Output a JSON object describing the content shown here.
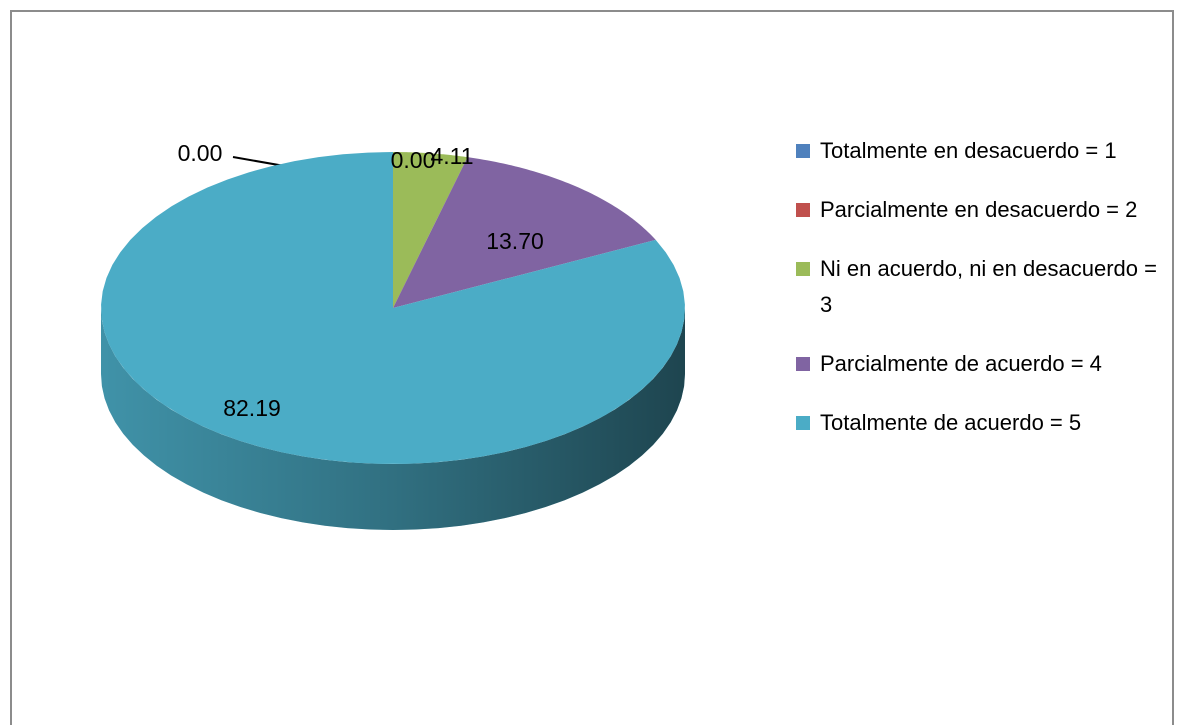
{
  "chart_data": {
    "type": "pie",
    "categories": [
      "Totalmente en desacuerdo = 1",
      "Parcialmente en desacuerdo = 2",
      "Ni en acuerdo, ni en desacuerdo = 3",
      "Parcialmente de acuerdo = 4",
      "Totalmente de acuerdo = 5"
    ],
    "values": [
      0,
      0,
      4.11,
      13.7,
      82.19
    ],
    "value_labels": [
      "0.00",
      "0.00",
      "4.11",
      "13.70",
      "82.19"
    ],
    "colors": [
      "#4f81bd",
      "#c0504d",
      "#9bbb59",
      "#8064a2",
      "#4bacc6"
    ],
    "legend": "right"
  }
}
